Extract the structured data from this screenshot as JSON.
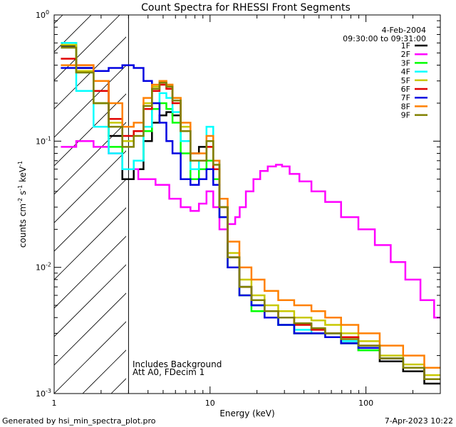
{
  "chart_data": {
    "type": "line",
    "title": "Count Spectra for RHESSI Front Segments",
    "xlabel": "Energy (keV)",
    "ylabel_parts": [
      "counts cm",
      "-2",
      " s",
      "-1",
      " keV",
      "-1"
    ],
    "xscale": "log",
    "yscale": "log",
    "xlim": [
      1,
      300
    ],
    "ylim": [
      0.001,
      1
    ],
    "x_ticks": [
      {
        "value": 1,
        "label": "1"
      },
      {
        "value": 10,
        "label": "10"
      },
      {
        "value": 100,
        "label": "100"
      }
    ],
    "y_ticks": [
      {
        "value": 1,
        "base": "10",
        "exp": "0"
      },
      {
        "value": 0.1,
        "base": "10",
        "exp": "-1"
      },
      {
        "value": 0.01,
        "base": "10",
        "exp": "-2"
      },
      {
        "value": 0.001,
        "base": "10",
        "exp": "-3"
      }
    ],
    "attenuator_limit_kev": 3,
    "legend_header": [
      "4-Feb-2004",
      "09:30:00 to 09:31:00"
    ],
    "legend_position": "top-right",
    "annotations": [
      "Includes Background",
      "Att A0, FDecim 1"
    ],
    "footer_left": "Generated by hsi_min_spectra_plot.pro",
    "footer_right": "7-Apr-2023 10:22",
    "series": [
      {
        "name": "1F",
        "color": "#000000",
        "values": [
          [
            1.2,
            0.57
          ],
          [
            1.6,
            0.38
          ],
          [
            2.0,
            0.3
          ],
          [
            2.5,
            0.11
          ],
          [
            3.0,
            0.05
          ],
          [
            3.5,
            0.06
          ],
          [
            4.0,
            0.1
          ],
          [
            4.5,
            0.14
          ],
          [
            5.0,
            0.16
          ],
          [
            5.5,
            0.17
          ],
          [
            6.0,
            0.16
          ],
          [
            7.0,
            0.12
          ],
          [
            8.0,
            0.08
          ],
          [
            9.0,
            0.09
          ],
          [
            10.0,
            0.1
          ],
          [
            11.0,
            0.07
          ],
          [
            12.0,
            0.03
          ],
          [
            14.0,
            0.012
          ],
          [
            17.0,
            0.007
          ],
          [
            20.0,
            0.005
          ],
          [
            25.0,
            0.004
          ],
          [
            30.0,
            0.0035
          ],
          [
            40.0,
            0.003
          ],
          [
            50.0,
            0.003
          ],
          [
            60.0,
            0.003
          ],
          [
            80.0,
            0.0025
          ],
          [
            100.0,
            0.0022
          ],
          [
            150.0,
            0.0018
          ],
          [
            200.0,
            0.0015
          ],
          [
            280.0,
            0.0012
          ]
        ]
      },
      {
        "name": "2F",
        "color": "#ff00ff",
        "values": [
          [
            1.2,
            0.09
          ],
          [
            1.6,
            0.1
          ],
          [
            2.0,
            0.09
          ],
          [
            2.5,
            0.08
          ],
          [
            3.0,
            0.06
          ],
          [
            4.0,
            0.05
          ],
          [
            5.0,
            0.045
          ],
          [
            6.0,
            0.035
          ],
          [
            7.0,
            0.03
          ],
          [
            8.0,
            0.028
          ],
          [
            9.0,
            0.032
          ],
          [
            10.0,
            0.04
          ],
          [
            11.0,
            0.03
          ],
          [
            12.0,
            0.02
          ],
          [
            14.0,
            0.022
          ],
          [
            15.0,
            0.025
          ],
          [
            16.0,
            0.03
          ],
          [
            18.0,
            0.04
          ],
          [
            20.0,
            0.05
          ],
          [
            22.0,
            0.058
          ],
          [
            25.0,
            0.063
          ],
          [
            28.0,
            0.065
          ],
          [
            30.0,
            0.063
          ],
          [
            35.0,
            0.055
          ],
          [
            40.0,
            0.048
          ],
          [
            50.0,
            0.04
          ],
          [
            60.0,
            0.033
          ],
          [
            80.0,
            0.025
          ],
          [
            100.0,
            0.02
          ],
          [
            130.0,
            0.015
          ],
          [
            160.0,
            0.011
          ],
          [
            200.0,
            0.008
          ],
          [
            250.0,
            0.0055
          ],
          [
            300.0,
            0.004
          ]
        ]
      },
      {
        "name": "3F",
        "color": "#00ff00",
        "values": [
          [
            1.2,
            0.6
          ],
          [
            1.6,
            0.35
          ],
          [
            2.0,
            0.2
          ],
          [
            2.5,
            0.09
          ],
          [
            3.0,
            0.06
          ],
          [
            3.5,
            0.07
          ],
          [
            4.0,
            0.12
          ],
          [
            4.5,
            0.18
          ],
          [
            5.0,
            0.2
          ],
          [
            5.5,
            0.18
          ],
          [
            6.0,
            0.14
          ],
          [
            7.0,
            0.08
          ],
          [
            8.0,
            0.05
          ],
          [
            9.0,
            0.06
          ],
          [
            10.0,
            0.07
          ],
          [
            11.0,
            0.05
          ],
          [
            12.0,
            0.025
          ],
          [
            14.0,
            0.01
          ],
          [
            17.0,
            0.006
          ],
          [
            20.0,
            0.0045
          ],
          [
            25.0,
            0.004
          ],
          [
            30.0,
            0.0035
          ],
          [
            40.0,
            0.003
          ],
          [
            50.0,
            0.003
          ],
          [
            60.0,
            0.003
          ],
          [
            80.0,
            0.0025
          ],
          [
            100.0,
            0.0022
          ],
          [
            150.0,
            0.0019
          ],
          [
            200.0,
            0.0016
          ],
          [
            280.0,
            0.0013
          ]
        ]
      },
      {
        "name": "4F",
        "color": "#00ffff",
        "values": [
          [
            1.2,
            0.6
          ],
          [
            1.6,
            0.25
          ],
          [
            2.0,
            0.13
          ],
          [
            2.5,
            0.08
          ],
          [
            3.0,
            0.06
          ],
          [
            3.5,
            0.07
          ],
          [
            4.0,
            0.13
          ],
          [
            4.5,
            0.2
          ],
          [
            5.0,
            0.24
          ],
          [
            5.5,
            0.22
          ],
          [
            6.0,
            0.17
          ],
          [
            7.0,
            0.1
          ],
          [
            8.0,
            0.06
          ],
          [
            9.0,
            0.07
          ],
          [
            10.0,
            0.13
          ],
          [
            11.0,
            0.07
          ],
          [
            12.0,
            0.03
          ],
          [
            14.0,
            0.012
          ],
          [
            17.0,
            0.007
          ],
          [
            20.0,
            0.005
          ],
          [
            25.0,
            0.004
          ],
          [
            30.0,
            0.0035
          ],
          [
            40.0,
            0.0032
          ],
          [
            50.0,
            0.003
          ],
          [
            60.0,
            0.003
          ],
          [
            80.0,
            0.0026
          ],
          [
            100.0,
            0.0023
          ],
          [
            150.0,
            0.0019
          ],
          [
            200.0,
            0.0016
          ],
          [
            280.0,
            0.0013
          ]
        ]
      },
      {
        "name": "5F",
        "color": "#c8c800",
        "values": [
          [
            1.2,
            0.58
          ],
          [
            1.6,
            0.36
          ],
          [
            2.0,
            0.2
          ],
          [
            2.5,
            0.14
          ],
          [
            3.0,
            0.1
          ],
          [
            3.5,
            0.12
          ],
          [
            4.0,
            0.2
          ],
          [
            4.5,
            0.27
          ],
          [
            5.0,
            0.3
          ],
          [
            5.5,
            0.28
          ],
          [
            6.0,
            0.22
          ],
          [
            7.0,
            0.13
          ],
          [
            8.0,
            0.07
          ],
          [
            9.0,
            0.07
          ],
          [
            10.0,
            0.09
          ],
          [
            11.0,
            0.06
          ],
          [
            12.0,
            0.03
          ],
          [
            14.0,
            0.013
          ],
          [
            17.0,
            0.008
          ],
          [
            20.0,
            0.006
          ],
          [
            25.0,
            0.005
          ],
          [
            30.0,
            0.0045
          ],
          [
            40.0,
            0.004
          ],
          [
            50.0,
            0.0038
          ],
          [
            60.0,
            0.0035
          ],
          [
            80.0,
            0.003
          ],
          [
            100.0,
            0.0026
          ],
          [
            150.0,
            0.002
          ],
          [
            200.0,
            0.0017
          ],
          [
            280.0,
            0.0014
          ]
        ]
      },
      {
        "name": "6F",
        "color": "#e00000",
        "values": [
          [
            1.2,
            0.45
          ],
          [
            1.6,
            0.4
          ],
          [
            2.0,
            0.25
          ],
          [
            2.5,
            0.15
          ],
          [
            3.0,
            0.11
          ],
          [
            3.5,
            0.12
          ],
          [
            4.0,
            0.18
          ],
          [
            4.5,
            0.25
          ],
          [
            5.0,
            0.28
          ],
          [
            5.5,
            0.26
          ],
          [
            6.0,
            0.2
          ],
          [
            7.0,
            0.12
          ],
          [
            8.0,
            0.07
          ],
          [
            9.0,
            0.07
          ],
          [
            10.0,
            0.09
          ],
          [
            11.0,
            0.06
          ],
          [
            12.0,
            0.03
          ],
          [
            14.0,
            0.012
          ],
          [
            17.0,
            0.007
          ],
          [
            20.0,
            0.0055
          ],
          [
            25.0,
            0.0045
          ],
          [
            30.0,
            0.004
          ],
          [
            40.0,
            0.0035
          ],
          [
            50.0,
            0.0032
          ],
          [
            60.0,
            0.003
          ],
          [
            80.0,
            0.0028
          ],
          [
            100.0,
            0.0024
          ],
          [
            150.0,
            0.0019
          ],
          [
            200.0,
            0.0016
          ],
          [
            280.0,
            0.0013
          ]
        ]
      },
      {
        "name": "7F",
        "color": "#0000e0",
        "values": [
          [
            1.2,
            0.38
          ],
          [
            1.6,
            0.38
          ],
          [
            2.0,
            0.36
          ],
          [
            2.5,
            0.38
          ],
          [
            3.0,
            0.4
          ],
          [
            3.5,
            0.38
          ],
          [
            4.0,
            0.3
          ],
          [
            4.5,
            0.2
          ],
          [
            5.0,
            0.14
          ],
          [
            5.5,
            0.1
          ],
          [
            6.0,
            0.08
          ],
          [
            7.0,
            0.05
          ],
          [
            8.0,
            0.045
          ],
          [
            9.0,
            0.05
          ],
          [
            10.0,
            0.06
          ],
          [
            11.0,
            0.045
          ],
          [
            12.0,
            0.025
          ],
          [
            14.0,
            0.01
          ],
          [
            17.0,
            0.006
          ],
          [
            20.0,
            0.005
          ],
          [
            25.0,
            0.004
          ],
          [
            30.0,
            0.0035
          ],
          [
            40.0,
            0.003
          ],
          [
            50.0,
            0.003
          ],
          [
            60.0,
            0.0028
          ],
          [
            80.0,
            0.0025
          ],
          [
            100.0,
            0.0023
          ],
          [
            150.0,
            0.0019
          ],
          [
            200.0,
            0.0016
          ],
          [
            280.0,
            0.0013
          ]
        ]
      },
      {
        "name": "8F",
        "color": "#ff8000",
        "values": [
          [
            1.2,
            0.4
          ],
          [
            1.6,
            0.4
          ],
          [
            2.0,
            0.3
          ],
          [
            2.5,
            0.2
          ],
          [
            3.0,
            0.13
          ],
          [
            3.5,
            0.14
          ],
          [
            4.0,
            0.22
          ],
          [
            4.5,
            0.28
          ],
          [
            5.0,
            0.3
          ],
          [
            5.5,
            0.28
          ],
          [
            6.0,
            0.22
          ],
          [
            7.0,
            0.14
          ],
          [
            8.0,
            0.08
          ],
          [
            9.0,
            0.08
          ],
          [
            10.0,
            0.11
          ],
          [
            11.0,
            0.07
          ],
          [
            12.0,
            0.035
          ],
          [
            14.0,
            0.016
          ],
          [
            17.0,
            0.01
          ],
          [
            20.0,
            0.008
          ],
          [
            25.0,
            0.0065
          ],
          [
            30.0,
            0.0055
          ],
          [
            40.0,
            0.005
          ],
          [
            50.0,
            0.0045
          ],
          [
            60.0,
            0.004
          ],
          [
            80.0,
            0.0035
          ],
          [
            100.0,
            0.003
          ],
          [
            150.0,
            0.0024
          ],
          [
            200.0,
            0.002
          ],
          [
            280.0,
            0.0016
          ]
        ]
      },
      {
        "name": "9F",
        "color": "#808000",
        "values": [
          [
            1.2,
            0.55
          ],
          [
            1.6,
            0.35
          ],
          [
            2.0,
            0.2
          ],
          [
            2.5,
            0.13
          ],
          [
            3.0,
            0.09
          ],
          [
            3.5,
            0.11
          ],
          [
            4.0,
            0.19
          ],
          [
            4.5,
            0.26
          ],
          [
            5.0,
            0.29
          ],
          [
            5.5,
            0.27
          ],
          [
            6.0,
            0.21
          ],
          [
            7.0,
            0.12
          ],
          [
            8.0,
            0.07
          ],
          [
            9.0,
            0.07
          ],
          [
            10.0,
            0.1
          ],
          [
            11.0,
            0.065
          ],
          [
            12.0,
            0.03
          ],
          [
            14.0,
            0.012
          ],
          [
            17.0,
            0.007
          ],
          [
            20.0,
            0.0055
          ],
          [
            25.0,
            0.0045
          ],
          [
            30.0,
            0.004
          ],
          [
            40.0,
            0.0036
          ],
          [
            50.0,
            0.0033
          ],
          [
            60.0,
            0.003
          ],
          [
            80.0,
            0.0027
          ],
          [
            100.0,
            0.0024
          ],
          [
            150.0,
            0.0019
          ],
          [
            200.0,
            0.0016
          ],
          [
            280.0,
            0.0013
          ]
        ]
      }
    ]
  }
}
